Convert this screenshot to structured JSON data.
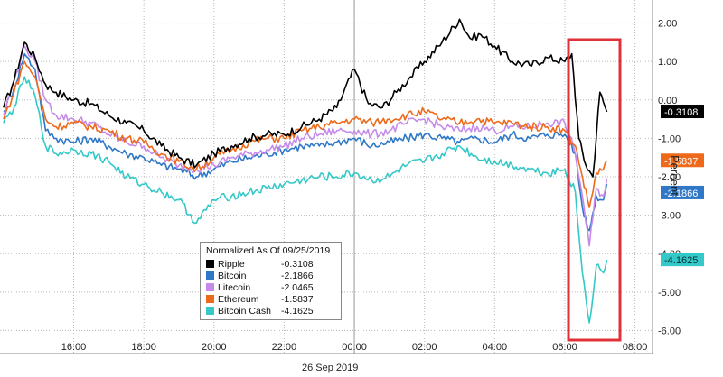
{
  "chart_data": {
    "type": "line",
    "title": "",
    "xlabel": "26 Sep 2019",
    "ylabel": "Percent",
    "y_axis_side": "right",
    "ylim": [
      -6.6,
      2.6
    ],
    "y_ticks": [
      "2.00",
      "1.00",
      "0.00",
      "-1.00",
      "-2.00",
      "-3.00",
      "-4.00",
      "-5.00",
      "-6.00"
    ],
    "x_ticks": [
      "16:00",
      "18:00",
      "20:00",
      "22:00",
      "00:00",
      "02:00",
      "04:00",
      "06:00",
      "08:00"
    ],
    "legend": {
      "title": "Normalized As Of 09/25/2019",
      "placement": "bottom-center"
    },
    "annotation": "red box highlighting 06:00–07:10 selloff",
    "series": [
      {
        "name": "Ripple",
        "value_label": "-0.3108",
        "color": "#000000",
        "points": [
          [
            14.0,
            -0.2
          ],
          [
            14.3,
            0.5
          ],
          [
            14.6,
            1.5
          ],
          [
            14.9,
            1.1
          ],
          [
            15.2,
            0.4
          ],
          [
            15.5,
            0.2
          ],
          [
            16.0,
            0.0
          ],
          [
            16.5,
            -0.1
          ],
          [
            17.0,
            -0.4
          ],
          [
            17.5,
            -0.6
          ],
          [
            18.0,
            -0.8
          ],
          [
            18.5,
            -1.2
          ],
          [
            19.0,
            -1.5
          ],
          [
            19.5,
            -1.7
          ],
          [
            20.0,
            -1.4
          ],
          [
            20.5,
            -1.2
          ],
          [
            21.0,
            -1.0
          ],
          [
            21.5,
            -0.9
          ],
          [
            22.0,
            -0.9
          ],
          [
            22.5,
            -0.7
          ],
          [
            23.0,
            -0.5
          ],
          [
            23.5,
            -0.2
          ],
          [
            24.0,
            0.8
          ],
          [
            24.4,
            -0.1
          ],
          [
            24.8,
            -0.2
          ],
          [
            25.2,
            0.2
          ],
          [
            25.6,
            0.6
          ],
          [
            26.0,
            1.0
          ],
          [
            26.5,
            1.5
          ],
          [
            27.0,
            2.1
          ],
          [
            27.3,
            1.6
          ],
          [
            27.6,
            1.7
          ],
          [
            28.0,
            1.4
          ],
          [
            28.5,
            1.0
          ],
          [
            29.0,
            0.9
          ],
          [
            29.5,
            1.1
          ],
          [
            30.0,
            1.0
          ],
          [
            30.2,
            1.2
          ],
          [
            30.4,
            -1.0
          ],
          [
            30.6,
            -1.7
          ],
          [
            30.8,
            -2.0
          ],
          [
            31.0,
            0.2
          ],
          [
            31.2,
            -0.3108
          ]
        ]
      },
      {
        "name": "Bitcoin",
        "value_label": "-2.1866",
        "color": "#2f78c8",
        "points": [
          [
            14.0,
            -0.3
          ],
          [
            14.3,
            0.3
          ],
          [
            14.6,
            1.2
          ],
          [
            14.9,
            0.8
          ],
          [
            15.2,
            -0.8
          ],
          [
            15.5,
            -1.0
          ],
          [
            16.0,
            -1.1
          ],
          [
            16.5,
            -1.0
          ],
          [
            17.0,
            -1.2
          ],
          [
            17.5,
            -1.4
          ],
          [
            18.0,
            -1.5
          ],
          [
            18.5,
            -1.7
          ],
          [
            19.0,
            -1.8
          ],
          [
            19.5,
            -2.0
          ],
          [
            20.0,
            -1.8
          ],
          [
            20.5,
            -1.6
          ],
          [
            21.0,
            -1.5
          ],
          [
            21.5,
            -1.4
          ],
          [
            22.0,
            -1.3
          ],
          [
            22.5,
            -1.2
          ],
          [
            23.0,
            -1.2
          ],
          [
            23.5,
            -1.1
          ],
          [
            24.0,
            -1.0
          ],
          [
            24.5,
            -1.2
          ],
          [
            25.0,
            -1.1
          ],
          [
            25.5,
            -1.0
          ],
          [
            26.0,
            -0.9
          ],
          [
            26.5,
            -1.0
          ],
          [
            27.0,
            -1.1
          ],
          [
            27.5,
            -1.0
          ],
          [
            28.0,
            -1.1
          ],
          [
            28.5,
            -0.9
          ],
          [
            29.0,
            -1.0
          ],
          [
            29.5,
            -0.9
          ],
          [
            30.0,
            -0.9
          ],
          [
            30.3,
            -1.4
          ],
          [
            30.5,
            -2.8
          ],
          [
            30.7,
            -3.4
          ],
          [
            30.9,
            -2.5
          ],
          [
            31.1,
            -2.6
          ],
          [
            31.2,
            -2.1866
          ]
        ]
      },
      {
        "name": "Litecoin",
        "value_label": "-2.0465",
        "color": "#c68be8",
        "points": [
          [
            14.0,
            -0.4
          ],
          [
            14.3,
            0.5
          ],
          [
            14.6,
            1.4
          ],
          [
            14.9,
            1.0
          ],
          [
            15.2,
            0.0
          ],
          [
            15.5,
            -0.4
          ],
          [
            16.0,
            -0.5
          ],
          [
            16.5,
            -0.6
          ],
          [
            17.0,
            -0.9
          ],
          [
            17.5,
            -1.1
          ],
          [
            18.0,
            -1.2
          ],
          [
            18.5,
            -1.5
          ],
          [
            19.0,
            -1.7
          ],
          [
            19.5,
            -1.8
          ],
          [
            20.0,
            -1.7
          ],
          [
            20.5,
            -1.5
          ],
          [
            21.0,
            -1.4
          ],
          [
            21.5,
            -1.3
          ],
          [
            22.0,
            -1.2
          ],
          [
            22.5,
            -1.0
          ],
          [
            23.0,
            -0.9
          ],
          [
            23.5,
            -0.8
          ],
          [
            24.0,
            -0.8
          ],
          [
            24.5,
            -0.9
          ],
          [
            25.0,
            -0.8
          ],
          [
            25.5,
            -0.6
          ],
          [
            26.0,
            -0.5
          ],
          [
            26.5,
            -0.7
          ],
          [
            27.0,
            -0.8
          ],
          [
            27.5,
            -0.7
          ],
          [
            28.0,
            -0.8
          ],
          [
            28.5,
            -0.7
          ],
          [
            29.0,
            -0.7
          ],
          [
            29.5,
            -0.6
          ],
          [
            30.0,
            -0.6
          ],
          [
            30.3,
            -1.4
          ],
          [
            30.5,
            -2.5
          ],
          [
            30.7,
            -3.8
          ],
          [
            30.9,
            -2.3
          ],
          [
            31.1,
            -2.5
          ],
          [
            31.2,
            -2.0465
          ]
        ]
      },
      {
        "name": "Ethereum",
        "value_label": "-1.5837",
        "color": "#ee6a1a",
        "points": [
          [
            14.0,
            -0.5
          ],
          [
            14.3,
            0.2
          ],
          [
            14.6,
            1.0
          ],
          [
            14.9,
            0.6
          ],
          [
            15.2,
            -0.5
          ],
          [
            15.5,
            -0.7
          ],
          [
            16.0,
            -0.6
          ],
          [
            16.5,
            -0.7
          ],
          [
            17.0,
            -0.8
          ],
          [
            17.5,
            -1.0
          ],
          [
            18.0,
            -1.1
          ],
          [
            18.5,
            -1.4
          ],
          [
            19.0,
            -1.6
          ],
          [
            19.5,
            -1.8
          ],
          [
            20.0,
            -1.5
          ],
          [
            20.5,
            -1.3
          ],
          [
            21.0,
            -1.1
          ],
          [
            21.5,
            -1.0
          ],
          [
            22.0,
            -1.0
          ],
          [
            22.5,
            -0.8
          ],
          [
            23.0,
            -0.7
          ],
          [
            23.5,
            -0.6
          ],
          [
            24.0,
            -0.5
          ],
          [
            24.5,
            -0.6
          ],
          [
            25.0,
            -0.5
          ],
          [
            25.5,
            -0.4
          ],
          [
            26.0,
            -0.3
          ],
          [
            26.5,
            -0.5
          ],
          [
            27.0,
            -0.6
          ],
          [
            27.5,
            -0.5
          ],
          [
            28.0,
            -0.6
          ],
          [
            28.5,
            -0.6
          ],
          [
            29.0,
            -0.7
          ],
          [
            29.5,
            -0.7
          ],
          [
            30.0,
            -0.8
          ],
          [
            30.3,
            -1.2
          ],
          [
            30.5,
            -2.0
          ],
          [
            30.7,
            -2.8
          ],
          [
            30.9,
            -1.9
          ],
          [
            31.1,
            -1.8
          ],
          [
            31.2,
            -1.5837
          ]
        ]
      },
      {
        "name": "Bitcoin Cash",
        "value_label": "-4.1625",
        "color": "#35c8c8",
        "points": [
          [
            14.0,
            -0.6
          ],
          [
            14.3,
            -0.2
          ],
          [
            14.6,
            0.6
          ],
          [
            14.9,
            0.1
          ],
          [
            15.2,
            -1.2
          ],
          [
            15.5,
            -1.4
          ],
          [
            16.0,
            -1.3
          ],
          [
            16.5,
            -1.4
          ],
          [
            17.0,
            -1.6
          ],
          [
            17.5,
            -2.0
          ],
          [
            18.0,
            -2.2
          ],
          [
            18.5,
            -2.4
          ],
          [
            19.0,
            -2.6
          ],
          [
            19.5,
            -3.2
          ],
          [
            20.0,
            -2.6
          ],
          [
            20.5,
            -2.5
          ],
          [
            21.0,
            -2.4
          ],
          [
            21.5,
            -2.3
          ],
          [
            22.0,
            -2.2
          ],
          [
            22.5,
            -2.1
          ],
          [
            23.0,
            -2.0
          ],
          [
            23.5,
            -2.0
          ],
          [
            24.0,
            -1.9
          ],
          [
            24.5,
            -2.1
          ],
          [
            25.0,
            -2.0
          ],
          [
            25.5,
            -1.7
          ],
          [
            26.0,
            -1.6
          ],
          [
            26.5,
            -1.4
          ],
          [
            27.0,
            -1.2
          ],
          [
            27.5,
            -1.5
          ],
          [
            28.0,
            -1.6
          ],
          [
            28.5,
            -1.7
          ],
          [
            29.0,
            -1.8
          ],
          [
            29.5,
            -1.9
          ],
          [
            30.0,
            -1.8
          ],
          [
            30.3,
            -2.4
          ],
          [
            30.5,
            -4.5
          ],
          [
            30.7,
            -5.8
          ],
          [
            30.9,
            -4.3
          ],
          [
            31.1,
            -4.5
          ],
          [
            31.2,
            -4.1625
          ]
        ]
      }
    ]
  },
  "colors": {
    "gridline": "#b8b8b8",
    "highlight_box": "#e0303a"
  }
}
